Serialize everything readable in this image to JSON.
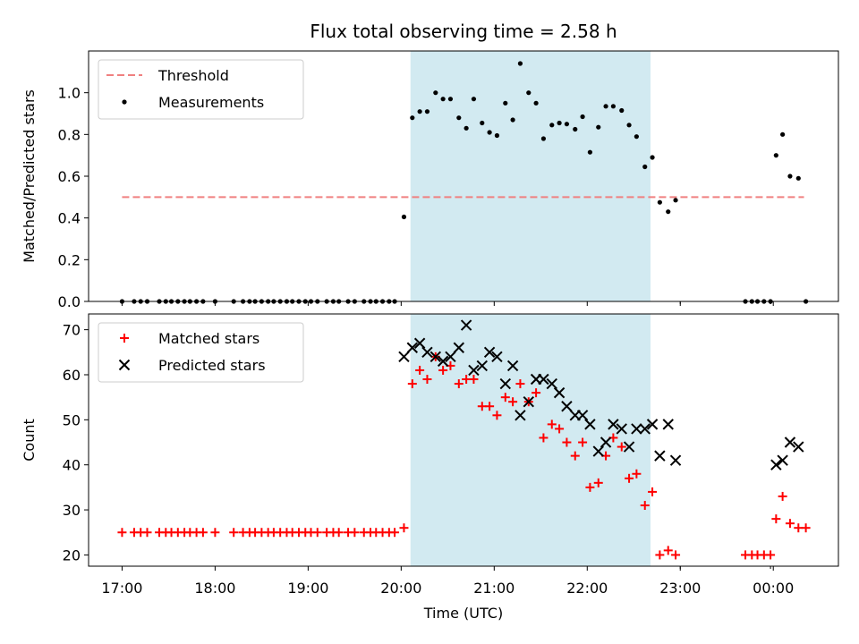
{
  "chart_data": {
    "title": "Flux total observing time = 2.58 h",
    "xlabel": "Time (UTC)",
    "x_tick_labels": [
      "17:00",
      "18:00",
      "19:00",
      "20:00",
      "21:00",
      "22:00",
      "23:00",
      "00:00"
    ],
    "x_tick_hours": [
      17,
      18,
      19,
      20,
      21,
      22,
      23,
      24
    ],
    "x_minor_tick_hours": [
      23,
      23.97
    ],
    "xlim": [
      16.64,
      24.7
    ],
    "observing_window": {
      "start_hour": 20.1,
      "end_hour": 22.68,
      "color": "#add8e6"
    },
    "panels": [
      {
        "type": "scatter",
        "ylabel": "Matched/Predicted stars",
        "ylim": [
          0,
          1.2
        ],
        "y_ticks": [
          0.0,
          0.2,
          0.4,
          0.6,
          0.8,
          1.0
        ],
        "y_tick_labels": [
          "0.0",
          "0.2",
          "0.4",
          "0.6",
          "0.8",
          "1.0"
        ],
        "legend": {
          "placement": "upper-left",
          "entries": [
            "Threshold",
            "Measurements"
          ]
        },
        "series": [
          {
            "name": "Threshold",
            "kind": "dashed-line",
            "color": "#f08080",
            "x": [
              17.0,
              24.33
            ],
            "y": [
              0.5,
              0.5
            ]
          },
          {
            "name": "Measurements",
            "kind": "dot",
            "color": "#000000",
            "x": [
              17.0,
              17.13,
              17.2,
              17.27,
              17.4,
              17.47,
              17.53,
              17.6,
              17.67,
              17.73,
              17.8,
              17.87,
              18.0,
              18.2,
              18.3,
              18.37,
              18.43,
              18.5,
              18.57,
              18.63,
              18.7,
              18.77,
              18.83,
              18.9,
              18.97,
              19.03,
              19.1,
              19.2,
              19.27,
              19.33,
              19.43,
              19.5,
              19.6,
              19.67,
              19.73,
              19.8,
              19.87,
              19.93,
              20.03,
              20.12,
              20.2,
              20.28,
              20.37,
              20.45,
              20.53,
              20.62,
              20.7,
              20.78,
              20.87,
              20.95,
              21.03,
              21.12,
              21.2,
              21.28,
              21.37,
              21.45,
              21.53,
              21.62,
              21.7,
              21.78,
              21.87,
              21.95,
              22.03,
              22.12,
              22.2,
              22.28,
              22.37,
              22.45,
              22.53,
              22.62,
              22.7,
              22.78,
              22.87,
              22.95,
              23.7,
              23.77,
              23.83,
              23.9,
              23.97,
              24.03,
              24.1,
              24.18,
              24.27,
              24.35
            ],
            "y": [
              0,
              0,
              0,
              0,
              0,
              0,
              0,
              0,
              0,
              0,
              0,
              0,
              0,
              0,
              0,
              0,
              0,
              0,
              0,
              0,
              0,
              0,
              0,
              0,
              0,
              0,
              0,
              0,
              0,
              0,
              0,
              0,
              0,
              0,
              0,
              0,
              0,
              0,
              0.405,
              0.88,
              0.91,
              0.91,
              1.0,
              0.97,
              0.97,
              0.88,
              0.83,
              0.97,
              0.855,
              0.81,
              0.795,
              0.95,
              0.87,
              1.14,
              1.0,
              0.95,
              0.78,
              0.845,
              0.855,
              0.85,
              0.825,
              0.885,
              0.715,
              0.835,
              0.935,
              0.935,
              0.915,
              0.845,
              0.79,
              0.645,
              0.69,
              0.475,
              0.43,
              0.485,
              0,
              0,
              0,
              0,
              0,
              0.7,
              0.8,
              0.6,
              0.59,
              0
            ]
          }
        ]
      },
      {
        "type": "scatter",
        "ylabel": "Count",
        "ylim": [
          17.5,
          73.5
        ],
        "y_ticks": [
          20,
          30,
          40,
          50,
          60,
          70
        ],
        "y_tick_labels": [
          "20",
          "30",
          "40",
          "50",
          "60",
          "70"
        ],
        "legend": {
          "placement": "upper-left",
          "entries": [
            "Matched stars",
            "Predicted stars"
          ]
        },
        "series": [
          {
            "name": "Matched stars",
            "kind": "plus",
            "color": "#ff0000",
            "x": [
              17.0,
              17.13,
              17.2,
              17.27,
              17.4,
              17.47,
              17.53,
              17.6,
              17.67,
              17.73,
              17.8,
              17.87,
              18.0,
              18.2,
              18.3,
              18.37,
              18.43,
              18.5,
              18.57,
              18.63,
              18.7,
              18.77,
              18.83,
              18.9,
              18.97,
              19.03,
              19.1,
              19.2,
              19.27,
              19.33,
              19.43,
              19.5,
              19.6,
              19.67,
              19.73,
              19.8,
              19.87,
              19.93,
              20.03,
              20.12,
              20.2,
              20.28,
              20.37,
              20.45,
              20.53,
              20.62,
              20.7,
              20.78,
              20.87,
              20.95,
              21.03,
              21.12,
              21.2,
              21.28,
              21.37,
              21.45,
              21.53,
              21.62,
              21.7,
              21.78,
              21.87,
              21.95,
              22.03,
              22.12,
              22.2,
              22.28,
              22.37,
              22.45,
              22.53,
              22.62,
              22.7,
              22.78,
              22.87,
              22.95,
              23.7,
              23.77,
              23.83,
              23.9,
              23.97,
              24.03,
              24.1,
              24.18,
              24.27,
              24.35
            ],
            "y": [
              25,
              25,
              25,
              25,
              25,
              25,
              25,
              25,
              25,
              25,
              25,
              25,
              25,
              25,
              25,
              25,
              25,
              25,
              25,
              25,
              25,
              25,
              25,
              25,
              25,
              25,
              25,
              25,
              25,
              25,
              25,
              25,
              25,
              25,
              25,
              25,
              25,
              25,
              26,
              58,
              61,
              59,
              64,
              61,
              62,
              58,
              59,
              59,
              53,
              53,
              51,
              55,
              54,
              58,
              54,
              56,
              46,
              49,
              48,
              45,
              42,
              45,
              35,
              36,
              42,
              46,
              44,
              37,
              38,
              31,
              34,
              20,
              21,
              20,
              20,
              20,
              20,
              20,
              20,
              28,
              33,
              27,
              26,
              26
            ]
          },
          {
            "name": "Predicted stars",
            "kind": "x",
            "color": "#000000",
            "x": [
              20.03,
              20.12,
              20.2,
              20.28,
              20.37,
              20.45,
              20.53,
              20.62,
              20.7,
              20.78,
              20.87,
              20.95,
              21.03,
              21.12,
              21.2,
              21.28,
              21.37,
              21.45,
              21.53,
              21.62,
              21.7,
              21.78,
              21.87,
              21.95,
              22.03,
              22.12,
              22.2,
              22.28,
              22.37,
              22.45,
              22.53,
              22.62,
              22.7,
              22.78,
              22.87,
              22.95,
              24.03,
              24.1,
              24.18,
              24.27
            ],
            "y": [
              64,
              66,
              67,
              65,
              64,
              63,
              64,
              66,
              71,
              61,
              62,
              65,
              64,
              58,
              62,
              51,
              54,
              59,
              59,
              58,
              56,
              53,
              51,
              51,
              49,
              43,
              45,
              49,
              48,
              44,
              48,
              48,
              49,
              42,
              49,
              41,
              40,
              41,
              45,
              44
            ]
          }
        ]
      }
    ]
  }
}
